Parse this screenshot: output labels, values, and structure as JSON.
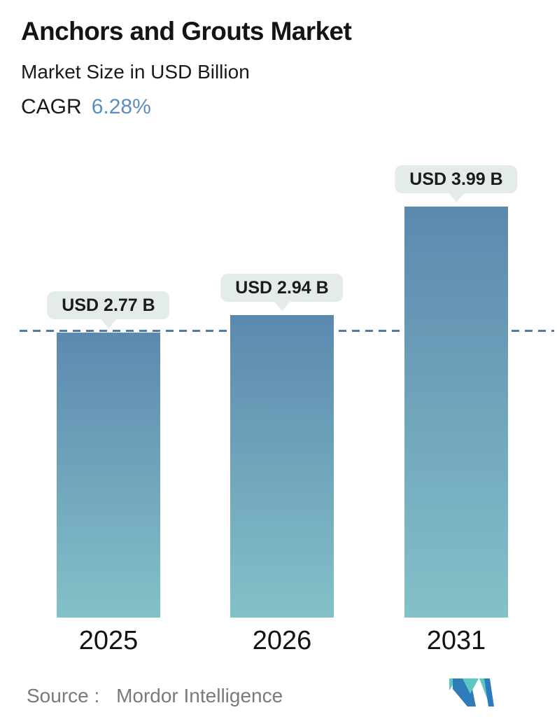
{
  "header": {
    "title": "Anchors and Grouts Market",
    "subtitle": "Market Size in USD Billion",
    "cagr_label": "CAGR",
    "cagr_value": "6.28%"
  },
  "chart_data": {
    "type": "bar",
    "title": "Anchors and Grouts Market",
    "subtitle": "Market Size in USD Billion",
    "cagr_percent": "6.28%",
    "unit": "USD Billion",
    "categories": [
      "2025",
      "2026",
      "2031"
    ],
    "values": [
      2.77,
      2.94,
      3.99
    ],
    "value_labels": [
      "USD 2.77 B",
      "USD 2.94 B",
      "USD 3.99 B"
    ],
    "ylim": [
      0,
      4.2
    ],
    "grid": false,
    "legend": false,
    "reference_line": {
      "value": 2.77,
      "style": "dashed"
    }
  },
  "footer": {
    "source_label": "Source :",
    "source_value": "Mordor Intelligence",
    "logo_name": "mordor-intelligence-logo"
  },
  "colors": {
    "bar_gradient_top": "#5c89af",
    "bar_gradient_bottom": "#83c1c8",
    "tooltip_bg": "#e4ebeb",
    "dashed_line": "#4c7ba3",
    "cagr_value": "#5b8ebf",
    "source_text": "#7a7a7a",
    "text_dark": "#141414",
    "logo_blue": "#2e7cba",
    "logo_teal": "#5bc8c2"
  }
}
